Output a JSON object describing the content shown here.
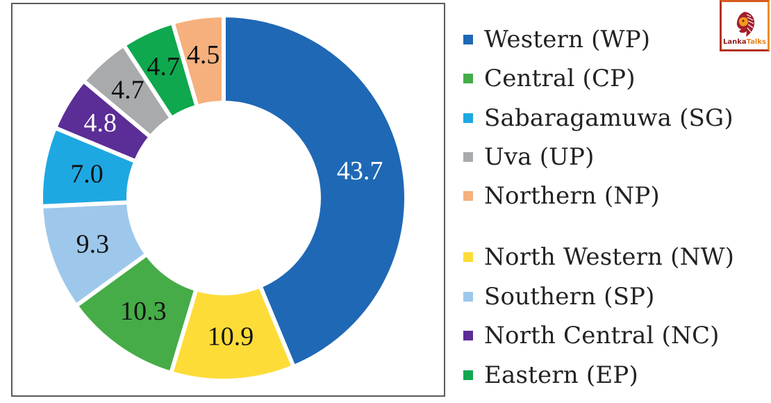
{
  "chart_data": {
    "type": "pie",
    "variant": "donut",
    "title": "",
    "unit": "%",
    "start_angle_deg": 0,
    "direction": "clockwise",
    "slices": [
      {
        "name": "Western (WP)",
        "value": 43.7,
        "label": "43.7",
        "color": "#1f68b5",
        "label_color": "#ffffff"
      },
      {
        "name": "North Western (NW)",
        "value": 10.9,
        "label": "10.9",
        "color": "#fddc38",
        "label_color": "#111111"
      },
      {
        "name": "Central (CP)",
        "value": 10.3,
        "label": "10.3",
        "color": "#45ac48",
        "label_color": "#111111"
      },
      {
        "name": "Southern (SP)",
        "value": 9.3,
        "label": "9.3",
        "color": "#9ec8eb",
        "label_color": "#111111"
      },
      {
        "name": "Sabaragamuwa (SG)",
        "value": 7.0,
        "label": "7.0",
        "color": "#1ea8e2",
        "label_color": "#111111"
      },
      {
        "name": "North Central (NC)",
        "value": 4.8,
        "label": "4.8",
        "color": "#5b2d96",
        "label_color": "#ffffff"
      },
      {
        "name": "Uva (UP)",
        "value": 4.7,
        "label": "4.7",
        "color": "#a8aaac",
        "label_color": "#111111"
      },
      {
        "name": "Eastern (EP)",
        "value": 4.7,
        "label": "4.7",
        "color": "#0fa84e",
        "label_color": "#111111"
      },
      {
        "name": "Northern (NP)",
        "value": 4.5,
        "label": "4.5",
        "color": "#f5b07e",
        "label_color": "#111111"
      }
    ],
    "legend_position": "right",
    "legend": [
      {
        "label": "Western (WP)",
        "color": "#1f68b5"
      },
      {
        "label": "Central (CP)",
        "color": "#45ac48"
      },
      {
        "label": "Sabaragamuwa (SG)",
        "color": "#1ea8e2"
      },
      {
        "label": "Uva (UP)",
        "color": "#a8aaac"
      },
      {
        "label": "Northern (NP)",
        "color": "#f5b07e"
      },
      {
        "label": "North Western (NW)",
        "color": "#fddc38"
      },
      {
        "label": "Southern (SP)",
        "color": "#9ec8eb"
      },
      {
        "label": "North Central (NC)",
        "color": "#5b2d96"
      },
      {
        "label": "Eastern (EP)",
        "color": "#0fa84e"
      }
    ]
  },
  "logo": {
    "text_part1": "Lanka",
    "text_part2": "Talks"
  }
}
